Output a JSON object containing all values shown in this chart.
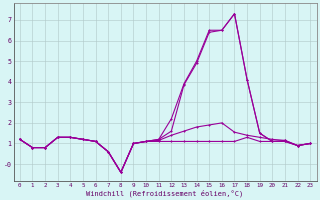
{
  "xlabel": "Windchill (Refroidissement éolien,°C)",
  "x": [
    0,
    1,
    2,
    3,
    4,
    5,
    6,
    7,
    8,
    9,
    10,
    11,
    12,
    13,
    14,
    15,
    16,
    17,
    18,
    19,
    20,
    21,
    22,
    23
  ],
  "line1": [
    1.2,
    0.8,
    0.8,
    1.3,
    1.3,
    1.2,
    1.1,
    0.6,
    -0.4,
    1.0,
    1.1,
    1.1,
    1.1,
    1.1,
    1.1,
    1.1,
    1.1,
    1.1,
    1.3,
    1.1,
    1.1,
    1.1,
    0.9,
    1.0
  ],
  "line2": [
    1.2,
    0.8,
    0.8,
    1.3,
    1.3,
    1.2,
    1.1,
    0.6,
    -0.4,
    1.0,
    1.1,
    1.15,
    1.4,
    1.6,
    1.8,
    1.9,
    2.0,
    1.55,
    1.4,
    1.3,
    1.2,
    1.15,
    0.9,
    1.0
  ],
  "line3": [
    1.2,
    0.8,
    0.8,
    1.3,
    1.3,
    1.2,
    1.1,
    0.6,
    -0.4,
    1.0,
    1.1,
    1.2,
    2.2,
    3.9,
    5.0,
    6.5,
    6.5,
    7.3,
    4.1,
    1.5,
    1.1,
    1.1,
    0.9,
    1.0
  ],
  "line4": [
    1.2,
    0.8,
    0.8,
    1.3,
    1.3,
    1.2,
    1.1,
    0.6,
    -0.4,
    1.0,
    1.1,
    1.2,
    1.6,
    3.85,
    4.9,
    6.4,
    6.5,
    7.3,
    4.1,
    1.5,
    1.1,
    1.15,
    0.9,
    1.0
  ],
  "line_color": "#990099",
  "bg_color": "#d8f5f5",
  "grid_color": "#b0c8c8",
  "ylim": [
    -0.8,
    7.8
  ],
  "yticks": [
    7,
    6,
    5,
    4,
    3,
    2,
    1,
    0
  ],
  "ytick_labels": [
    "7",
    "6",
    "5",
    "4",
    "3",
    "2",
    "1",
    "-0"
  ],
  "xticks": [
    0,
    1,
    2,
    3,
    4,
    5,
    6,
    7,
    8,
    9,
    10,
    11,
    12,
    13,
    14,
    15,
    16,
    17,
    18,
    19,
    20,
    21,
    22,
    23
  ]
}
